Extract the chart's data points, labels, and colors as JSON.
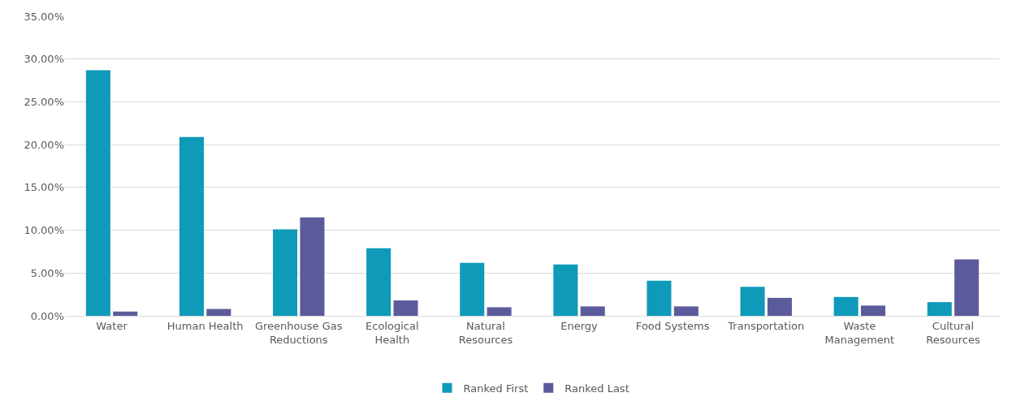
{
  "chart_data": {
    "type": "bar",
    "categories": [
      "Water",
      "Human Health",
      "Greenhouse Gas Reductions",
      "Ecological Health",
      "Natural Resources",
      "Energy",
      "Food Systems",
      "Transportation",
      "Waste Management",
      "Cultural Resources"
    ],
    "series": [
      {
        "name": "Ranked First",
        "color": "#0e9ab8",
        "values": [
          28.7,
          20.9,
          10.1,
          7.9,
          6.2,
          6.0,
          4.1,
          3.4,
          2.2,
          1.6
        ]
      },
      {
        "name": "Ranked Last",
        "color": "#5b5b9b",
        "values": [
          0.5,
          0.8,
          11.5,
          1.8,
          1.0,
          1.1,
          1.1,
          2.1,
          1.2,
          6.6
        ]
      }
    ],
    "ylim": [
      0,
      35
    ],
    "yticks": [
      {
        "value": 0,
        "label": "0.00%"
      },
      {
        "value": 5,
        "label": "5.00%"
      },
      {
        "value": 10,
        "label": "10.00%"
      },
      {
        "value": 15,
        "label": "15.00%"
      },
      {
        "value": 20,
        "label": "20.00%"
      },
      {
        "value": 25,
        "label": "25.00%"
      },
      {
        "value": 30,
        "label": "30.00%"
      },
      {
        "value": 35,
        "label": "35.00%"
      }
    ],
    "grid": "y",
    "legend": "bottom"
  }
}
